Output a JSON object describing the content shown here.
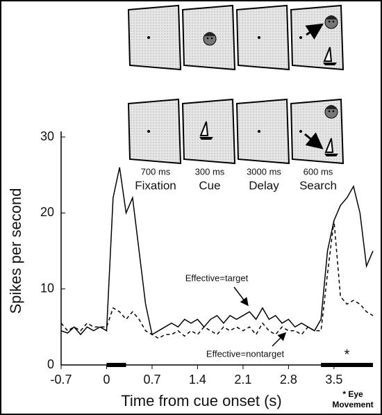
{
  "chart_data": {
    "type": "line",
    "x_label": "Time from cue onset (s)",
    "y_label": "Spikes per second",
    "x": [
      -0.7,
      -0.6,
      -0.5,
      -0.4,
      -0.3,
      -0.2,
      -0.1,
      0,
      0.1,
      0.2,
      0.3,
      0.4,
      0.5,
      0.6,
      0.7,
      0.8,
      0.9,
      1.0,
      1.1,
      1.2,
      1.3,
      1.4,
      1.5,
      1.6,
      1.7,
      1.8,
      1.9,
      2.0,
      2.1,
      2.2,
      2.3,
      2.4,
      2.5,
      2.6,
      2.7,
      2.8,
      2.9,
      3.0,
      3.1,
      3.2,
      3.3,
      3.4,
      3.5,
      3.6,
      3.7,
      3.8,
      3.9,
      4.0,
      4.1
    ],
    "series": [
      {
        "name": "Effective=target",
        "color": "#000000",
        "dash": false,
        "values": [
          4.5,
          4.2,
          5,
          4,
          5,
          4.5,
          5,
          4.5,
          22,
          26,
          20,
          22,
          15,
          8,
          4,
          4.5,
          5,
          5.5,
          5,
          6,
          5.5,
          6,
          5,
          6,
          6.5,
          5.5,
          6.5,
          6,
          6.5,
          7,
          6,
          7.5,
          6,
          6.5,
          5.5,
          6,
          5,
          5.5,
          5,
          4.5,
          6,
          15,
          19,
          21,
          22,
          23.5,
          20,
          13,
          15
        ]
      },
      {
        "name": "Effective=nontarget",
        "color": "#000000",
        "dash": true,
        "values": [
          5.5,
          4.5,
          5,
          4.5,
          5.5,
          5,
          5,
          5,
          7.5,
          7,
          6,
          7,
          6,
          4.5,
          4,
          3.5,
          4,
          4,
          4.5,
          3.8,
          4.5,
          4,
          5,
          4.5,
          4,
          5,
          4.5,
          5,
          4.5,
          5,
          4,
          5.5,
          4.5,
          4,
          5,
          4.5,
          4.5,
          4,
          5,
          4.5,
          4.5,
          12,
          19,
          9,
          8,
          8.5,
          8,
          7,
          6.5
        ]
      }
    ],
    "xlim": [
      -0.7,
      4.1
    ],
    "ylim": [
      0,
      30
    ],
    "xticks": [
      -0.7,
      0,
      0.7,
      1.4,
      2.1,
      2.8,
      3.5
    ],
    "yticks": [
      0,
      10,
      20,
      30
    ],
    "event_bars": [
      {
        "start": 0,
        "end": 0.3
      },
      {
        "start": 3.3,
        "end": 4.1
      }
    ],
    "event_marker": "*",
    "event_note": "* Eye Movement",
    "phases": [
      {
        "duration": "700 ms",
        "label": "Fixation"
      },
      {
        "duration": "300 ms",
        "label": "Cue"
      },
      {
        "duration": "3000 ms",
        "label": "Delay"
      },
      {
        "duration": "600 ms",
        "label": "Search"
      }
    ]
  }
}
